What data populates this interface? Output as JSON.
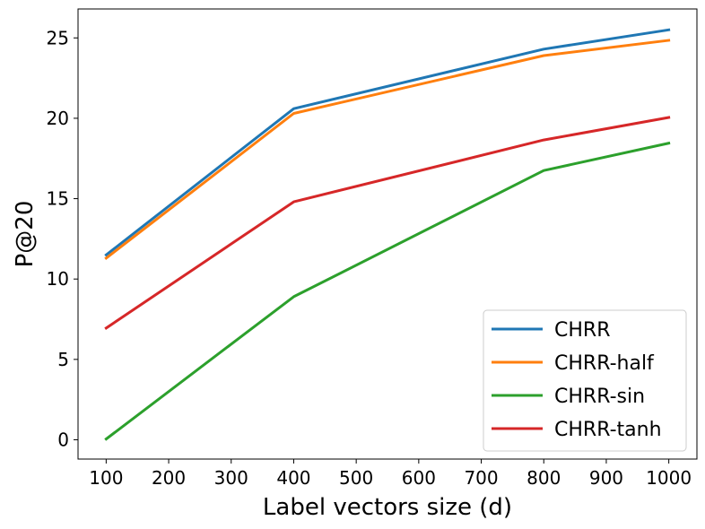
{
  "chart_data": {
    "type": "line",
    "title": "",
    "xlabel": "Label vectors size (d)",
    "ylabel": "P@20",
    "x": [
      100,
      400,
      800,
      1000
    ],
    "xlim": [
      55,
      1045
    ],
    "ylim": [
      -1.2,
      26.8
    ],
    "xticks": [
      100,
      200,
      300,
      400,
      500,
      600,
      700,
      800,
      900,
      1000
    ],
    "yticks": [
      0,
      5,
      10,
      15,
      20,
      25
    ],
    "grid": false,
    "legend_position": "lower-right",
    "series": [
      {
        "name": "CHRR",
        "color": "#1f77b4",
        "values": [
          11.5,
          20.6,
          24.3,
          25.5
        ]
      },
      {
        "name": "CHRR-half",
        "color": "#ff7f0e",
        "values": [
          11.3,
          20.3,
          23.9,
          24.85
        ]
      },
      {
        "name": "CHRR-sin",
        "color": "#2ca02c",
        "values": [
          0.05,
          8.9,
          16.75,
          18.45
        ]
      },
      {
        "name": "CHRR-tanh",
        "color": "#d62728",
        "values": [
          6.95,
          14.8,
          18.65,
          20.05
        ]
      }
    ]
  }
}
